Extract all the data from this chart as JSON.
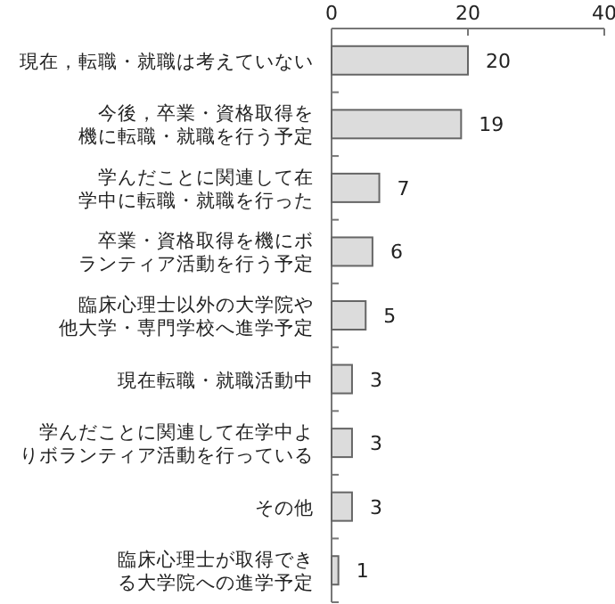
{
  "chart_data": {
    "type": "bar",
    "orientation": "horizontal",
    "categories": [
      "現在，転職・就職は考えていない",
      "今後，卒業・資格取得を機に転職・就職を行う予定",
      "学んだことに関連して在学中に転職・就職を行った",
      "卒業・資格取得を機にボランティア活動を行う予定",
      "臨床心理士以外の大学院や他大学・専門学校へ進学予定",
      "現在転職・就職活動中",
      "学んだことに関連して在学中よりボランティア活動を行っている",
      "その他",
      "臨床心理士が取得できる大学院への進学予定"
    ],
    "values": [
      20,
      19,
      7,
      6,
      5,
      3,
      3,
      3,
      1
    ],
    "color": "#dcdcdc",
    "xlim": [
      0,
      40
    ],
    "xticks": [
      0,
      20,
      40
    ],
    "data_labels": true
  }
}
